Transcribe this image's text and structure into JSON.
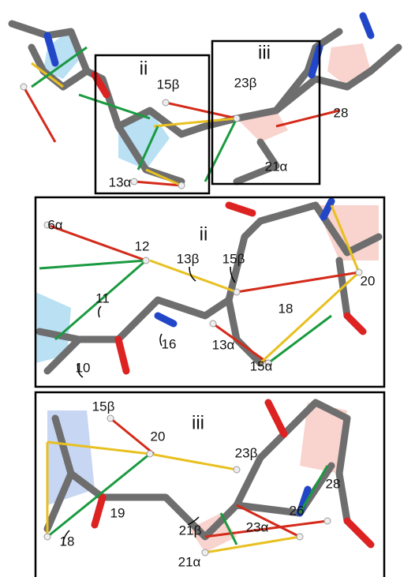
{
  "top": {
    "box_ii": "ii",
    "box_iii": "iii",
    "labels": [
      "15β",
      "13α",
      "23β",
      "28",
      "21α"
    ]
  },
  "panel_ii": {
    "title": "ii",
    "labels": [
      "6α",
      "12",
      "13β",
      "15β",
      "20",
      "11",
      "18",
      "16",
      "13α",
      "10",
      "15α"
    ]
  },
  "panel_iii": {
    "title": "iii",
    "labels": [
      "15β",
      "20",
      "23β",
      "28",
      "26",
      "19",
      "21β",
      "23α",
      "18",
      "21α"
    ]
  }
}
